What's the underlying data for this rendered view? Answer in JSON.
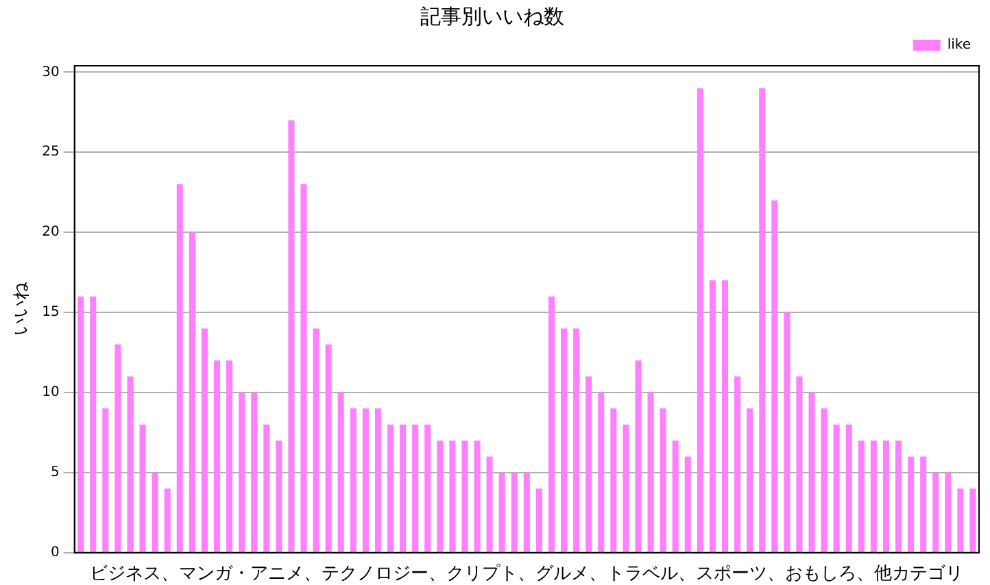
{
  "chart_data": {
    "type": "bar",
    "title": "記事別いいね数",
    "xlabel": "ビジネス、マンガ・アニメ、テクノロジー、クリプト、グルメ、トラベル、スポーツ、おもしろ、他カテゴリ",
    "ylabel": "いいね",
    "categories": [
      null,
      null,
      null,
      null,
      null,
      null,
      null,
      null,
      null,
      null,
      null,
      null,
      null,
      null,
      null,
      null,
      null,
      null,
      null,
      null,
      null,
      null,
      null,
      null,
      null,
      null,
      null,
      null,
      null,
      null,
      null,
      null,
      null,
      null,
      null,
      null,
      null,
      null,
      null,
      null,
      null,
      null,
      null,
      null,
      null,
      null,
      null,
      null,
      null,
      null,
      null,
      null,
      null,
      null,
      null,
      null,
      null,
      null,
      null,
      null,
      null,
      null,
      null,
      null,
      null,
      null,
      null,
      null,
      null,
      null,
      null,
      null,
      null
    ],
    "series": [
      {
        "name": "like",
        "color": "#ff80ff",
        "values": [
          16,
          16,
          9,
          13,
          11,
          8,
          5,
          4,
          23,
          20,
          14,
          12,
          12,
          10,
          10,
          8,
          7,
          27,
          23,
          14,
          13,
          10,
          9,
          9,
          9,
          8,
          8,
          8,
          8,
          7,
          7,
          7,
          7,
          6,
          5,
          5,
          5,
          4,
          16,
          14,
          14,
          11,
          10,
          9,
          8,
          12,
          10,
          9,
          7,
          6,
          29,
          17,
          17,
          11,
          9,
          29,
          22,
          15,
          11,
          10,
          9,
          8,
          8,
          7,
          7,
          7,
          7,
          6,
          6,
          5,
          5,
          4,
          4
        ]
      }
    ],
    "ylim": [
      0,
      30.4
    ],
    "yticks": [
      0,
      5,
      10,
      15,
      20,
      25,
      30
    ],
    "grid": "y",
    "legend": "top right"
  }
}
